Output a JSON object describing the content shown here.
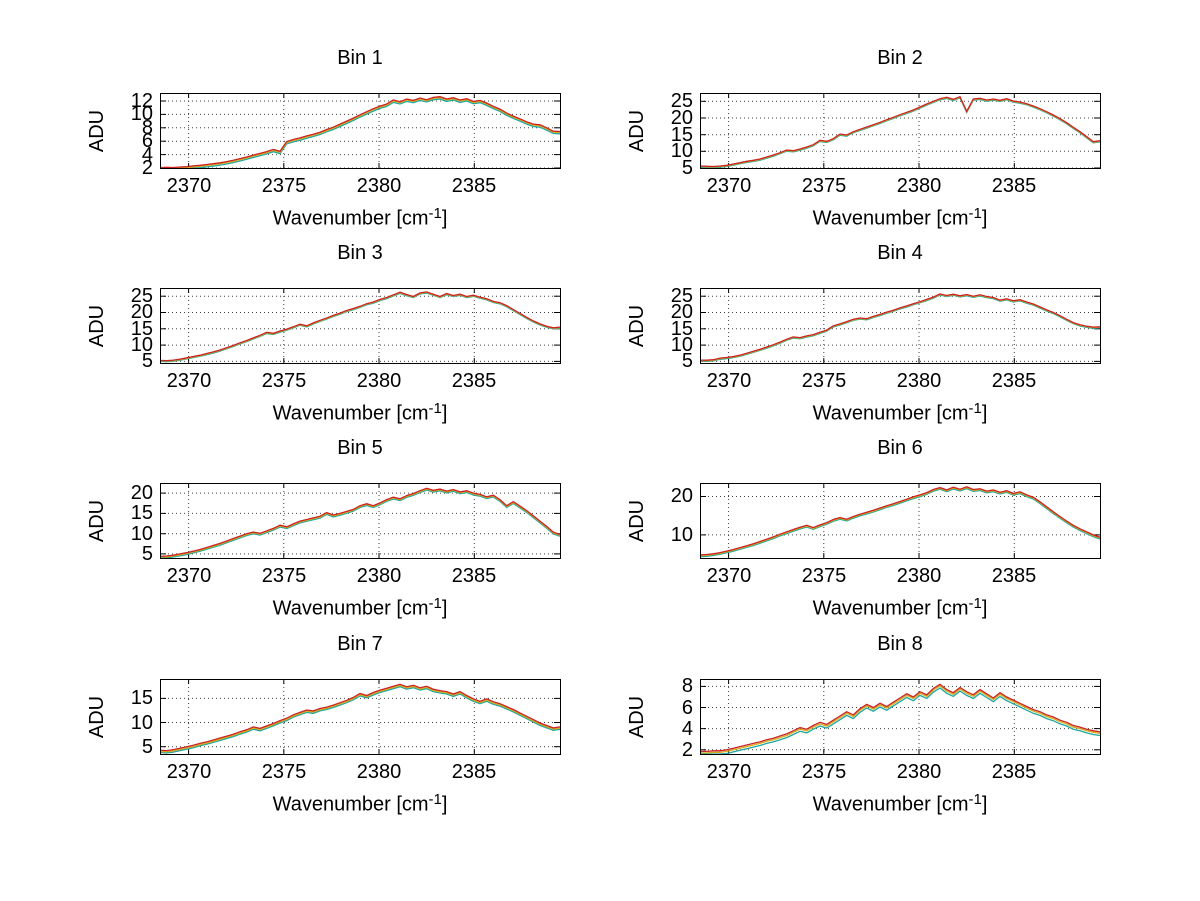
{
  "figure": {
    "background": "#ffffff"
  },
  "chart_data": {
    "type": "line",
    "layout": {
      "rows": 4,
      "cols": 2,
      "grid": "dotted",
      "legend": "none"
    },
    "ylabel": "ADU",
    "xlabel": {
      "pre": "Wavenumber [cm",
      "sup": "-1",
      "post": "]"
    },
    "x_lim": [
      2368.5,
      2389.5
    ],
    "x_ticks": [
      2370,
      2375,
      2380,
      2385
    ],
    "series_colors": {
      "red": "#cc2323",
      "yellow": "#d6a91f",
      "teal": "#1ea8a0"
    },
    "x": [
      2368.5,
      2368.85,
      2369.2,
      2369.55,
      2369.9,
      2370.25,
      2370.6,
      2370.95,
      2371.3,
      2371.65,
      2372,
      2372.35,
      2372.7,
      2373.05,
      2373.4,
      2373.75,
      2374.1,
      2374.45,
      2374.8,
      2375.15,
      2375.5,
      2375.85,
      2376.2,
      2376.55,
      2376.9,
      2377.25,
      2377.6,
      2377.95,
      2378.3,
      2378.65,
      2379,
      2379.35,
      2379.7,
      2380.05,
      2380.4,
      2380.75,
      2381.1,
      2381.45,
      2381.8,
      2382.15,
      2382.5,
      2382.85,
      2383.2,
      2383.55,
      2383.9,
      2384.25,
      2384.6,
      2384.95,
      2385.3,
      2385.65,
      2386,
      2386.35,
      2386.7,
      2387.05,
      2387.4,
      2387.75,
      2388.1,
      2388.45,
      2388.8,
      2389.15,
      2389.5
    ],
    "bins": [
      {
        "title": "Bin 1",
        "y_lim": [
          2,
          13.2
        ],
        "y_ticks": [
          2,
          4,
          6,
          8,
          10,
          12
        ],
        "series": [
          {
            "name": "series-red",
            "color": "#cc2323",
            "values": [
              2.05,
              2.1,
              2.08,
              2.15,
              2.2,
              2.32,
              2.4,
              2.52,
              2.64,
              2.78,
              2.95,
              3.15,
              3.4,
              3.65,
              3.92,
              4.18,
              4.45,
              4.78,
              4.5,
              5.95,
              6.25,
              6.5,
              6.8,
              7.05,
              7.35,
              7.75,
              8.1,
              8.55,
              9.0,
              9.45,
              9.95,
              10.4,
              10.85,
              11.25,
              11.55,
              12.15,
              11.9,
              12.3,
              12.1,
              12.45,
              12.2,
              12.55,
              12.65,
              12.3,
              12.5,
              12.15,
              12.35,
              11.95,
              12.1,
              11.7,
              11.2,
              10.8,
              10.2,
              9.75,
              9.35,
              8.9,
              8.55,
              8.45,
              8.0,
              7.5,
              7.45
            ]
          },
          {
            "name": "series-yellow",
            "color": "#d6a91f",
            "offset": -0.15
          },
          {
            "name": "series-teal",
            "color": "#1ea8a0",
            "offset": -0.35
          }
        ]
      },
      {
        "title": "Bin 2",
        "y_lim": [
          5,
          27.5
        ],
        "y_ticks": [
          5,
          10,
          15,
          20,
          25
        ],
        "series": [
          {
            "name": "series-red",
            "color": "#cc2323",
            "values": [
              5.6,
              5.5,
              5.45,
              5.6,
              5.8,
              6.2,
              6.6,
              7.0,
              7.3,
              7.7,
              8.3,
              8.9,
              9.6,
              10.4,
              10.2,
              10.7,
              11.3,
              12.0,
              13.3,
              13.0,
              13.8,
              15.2,
              14.9,
              15.9,
              16.6,
              17.3,
              18.0,
              18.7,
              19.5,
              20.2,
              21.0,
              21.7,
              22.4,
              23.3,
              24.2,
              25.0,
              25.8,
              26.2,
              25.6,
              26.4,
              22.0,
              25.7,
              25.9,
              25.4,
              25.7,
              25.3,
              25.8,
              25.1,
              24.8,
              24.3,
              23.6,
              22.8,
              21.9,
              20.9,
              19.8,
              18.6,
              17.2,
              15.9,
              14.4,
              12.9,
              13.2
            ]
          },
          {
            "name": "series-yellow",
            "color": "#d6a91f",
            "offset": -0.15
          },
          {
            "name": "series-teal",
            "color": "#1ea8a0",
            "offset": -0.35
          }
        ]
      },
      {
        "title": "Bin 3",
        "y_lim": [
          4.5,
          27.5
        ],
        "y_ticks": [
          5,
          10,
          15,
          20,
          25
        ],
        "series": [
          {
            "name": "series-red",
            "color": "#cc2323",
            "values": [
              5.3,
              5.25,
              5.4,
              5.7,
              6.1,
              6.5,
              6.9,
              7.4,
              7.9,
              8.5,
              9.2,
              9.9,
              10.7,
              11.4,
              12.2,
              13.0,
              13.9,
              13.6,
              14.3,
              14.9,
              15.6,
              16.4,
              15.9,
              16.8,
              17.6,
              18.3,
              19.1,
              19.8,
              20.6,
              21.2,
              21.9,
              22.7,
              23.2,
              24.0,
              24.6,
              25.4,
              26.2,
              25.5,
              24.9,
              26.0,
              26.3,
              25.6,
              24.9,
              25.8,
              25.2,
              25.6,
              24.9,
              25.3,
              24.7,
              24.2,
              23.4,
              23.0,
              22.1,
              20.9,
              19.7,
              18.5,
              17.4,
              16.5,
              15.8,
              15.3,
              15.5
            ]
          },
          {
            "name": "series-yellow",
            "color": "#d6a91f",
            "offset": -0.15
          },
          {
            "name": "series-teal",
            "color": "#1ea8a0",
            "offset": -0.35
          }
        ]
      },
      {
        "title": "Bin 4",
        "y_lim": [
          4.5,
          27.5
        ],
        "y_ticks": [
          5,
          10,
          15,
          20,
          25
        ],
        "series": [
          {
            "name": "series-red",
            "color": "#cc2323",
            "values": [
              5.4,
              5.35,
              5.5,
              6.0,
              6.2,
              6.5,
              6.9,
              7.5,
              8.1,
              8.7,
              9.4,
              10.1,
              10.9,
              11.8,
              12.5,
              12.3,
              12.8,
              13.2,
              13.9,
              14.6,
              15.9,
              16.5,
              17.2,
              17.9,
              18.3,
              18.1,
              18.8,
              19.4,
              20.1,
              20.7,
              21.4,
              22.0,
              22.7,
              23.3,
              24.0,
              24.7,
              25.7,
              25.2,
              25.6,
              25.1,
              25.5,
              25.0,
              25.4,
              24.9,
              24.6,
              23.8,
              24.2,
              23.6,
              23.9,
              23.2,
              22.6,
              21.7,
              20.8,
              20.0,
              19.0,
              17.9,
              16.9,
              16.2,
              15.8,
              15.5,
              15.6
            ]
          },
          {
            "name": "series-yellow",
            "color": "#d6a91f",
            "offset": -0.15
          },
          {
            "name": "series-teal",
            "color": "#1ea8a0",
            "offset": -0.35
          }
        ]
      },
      {
        "title": "Bin 5",
        "y_lim": [
          4,
          22.5
        ],
        "y_ticks": [
          5,
          10,
          15,
          20
        ],
        "series": [
          {
            "name": "series-red",
            "color": "#cc2323",
            "values": [
              4.4,
              4.5,
              4.7,
              5.0,
              5.3,
              5.7,
              6.1,
              6.6,
              7.1,
              7.6,
              8.2,
              8.8,
              9.4,
              10.0,
              10.4,
              10.1,
              10.7,
              11.3,
              12.1,
              11.7,
              12.4,
              13.1,
              13.5,
              13.9,
              14.3,
              15.2,
              14.6,
              15.0,
              15.5,
              16.0,
              16.9,
              17.4,
              16.9,
              17.6,
              18.4,
              19.0,
              18.6,
              19.4,
              19.9,
              20.6,
              21.2,
              20.7,
              21.0,
              20.5,
              20.9,
              20.3,
              20.6,
              20.0,
              19.7,
              19.1,
              19.5,
              18.4,
              16.9,
              17.9,
              16.8,
              15.7,
              14.4,
              13.1,
              11.8,
              10.4,
              9.8
            ]
          },
          {
            "name": "series-yellow",
            "color": "#d6a91f",
            "offset": -0.2
          },
          {
            "name": "series-teal",
            "color": "#1ea8a0",
            "offset": -0.45
          }
        ]
      },
      {
        "title": "Bin 6",
        "y_lim": [
          4,
          23.5
        ],
        "y_ticks": [
          10,
          20
        ],
        "series": [
          {
            "name": "series-red",
            "color": "#cc2323",
            "values": [
              4.8,
              4.9,
              5.1,
              5.4,
              5.8,
              6.2,
              6.7,
              7.2,
              7.7,
              8.3,
              8.9,
              9.5,
              10.2,
              10.8,
              11.4,
              12.0,
              12.5,
              11.9,
              12.6,
              13.2,
              14.0,
              14.5,
              14.1,
              14.8,
              15.4,
              15.9,
              16.4,
              17.0,
              17.6,
              18.1,
              18.7,
              19.3,
              19.9,
              20.4,
              21.0,
              21.8,
              22.3,
              21.7,
              22.4,
              21.9,
              22.5,
              21.8,
              22.0,
              21.4,
              21.7,
              21.1,
              21.5,
              20.8,
              21.2,
              20.4,
              19.8,
              18.6,
              17.3,
              16.0,
              14.8,
              13.6,
              12.5,
              11.6,
              10.8,
              10.0,
              9.4
            ]
          },
          {
            "name": "series-yellow",
            "color": "#d6a91f",
            "offset": -0.2
          },
          {
            "name": "series-teal",
            "color": "#1ea8a0",
            "offset": -0.45
          }
        ]
      },
      {
        "title": "Bin 7",
        "y_lim": [
          3.5,
          19
        ],
        "y_ticks": [
          5,
          10,
          15
        ],
        "series": [
          {
            "name": "series-red",
            "color": "#cc2323",
            "values": [
              4.3,
              4.2,
              4.4,
              4.7,
              5.0,
              5.3,
              5.7,
              6.0,
              6.4,
              6.8,
              7.2,
              7.6,
              8.1,
              8.5,
              9.1,
              8.8,
              9.3,
              9.8,
              10.4,
              10.9,
              11.6,
              12.1,
              12.6,
              12.4,
              12.9,
              13.2,
              13.6,
              14.1,
              14.6,
              15.2,
              16.0,
              15.6,
              16.2,
              16.7,
              17.1,
              17.5,
              17.9,
              17.4,
              17.7,
              17.2,
              17.5,
              16.9,
              16.6,
              16.4,
              15.9,
              16.4,
              15.6,
              14.9,
              14.4,
              14.9,
              14.3,
              13.9,
              13.3,
              12.7,
              12.0,
              11.3,
              10.6,
              9.9,
              9.4,
              8.9,
              9.1
            ]
          },
          {
            "name": "series-yellow",
            "color": "#d6a91f",
            "offset": -0.25
          },
          {
            "name": "series-teal",
            "color": "#1ea8a0",
            "offset": -0.5
          }
        ]
      },
      {
        "title": "Bin 8",
        "y_lim": [
          1.6,
          8.7
        ],
        "y_ticks": [
          2,
          4,
          6,
          8
        ],
        "series": [
          {
            "name": "series-red",
            "color": "#cc2323",
            "values": [
              1.85,
              1.85,
              1.9,
              1.9,
              2.0,
              2.15,
              2.3,
              2.45,
              2.6,
              2.75,
              2.95,
              3.1,
              3.3,
              3.5,
              3.8,
              4.1,
              3.95,
              4.3,
              4.6,
              4.4,
              4.8,
              5.2,
              5.6,
              5.3,
              5.9,
              6.3,
              6.0,
              6.4,
              6.1,
              6.5,
              6.9,
              7.3,
              7.0,
              7.5,
              7.2,
              7.8,
              8.2,
              7.7,
              7.4,
              7.9,
              7.5,
              7.2,
              7.7,
              7.3,
              6.9,
              7.4,
              7.0,
              6.7,
              6.4,
              6.1,
              5.8,
              5.6,
              5.3,
              5.1,
              4.8,
              4.6,
              4.3,
              4.15,
              3.95,
              3.8,
              3.7
            ]
          },
          {
            "name": "series-yellow",
            "color": "#d6a91f",
            "offset": -0.15
          },
          {
            "name": "series-teal",
            "color": "#1ea8a0",
            "offset": -0.35
          }
        ]
      }
    ]
  }
}
